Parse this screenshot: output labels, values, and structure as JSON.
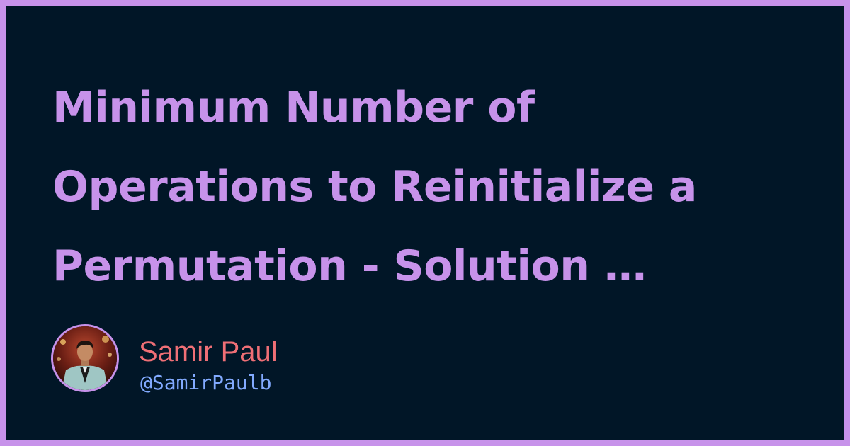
{
  "title_lines": [
    "Minimum Number of",
    "Operations to Reinitialize a",
    "Permutation - Solution …"
  ],
  "author": {
    "name": "Samir Paul",
    "handle": "@SamirPaulb"
  },
  "colors": {
    "border": "#c792ea",
    "background": "#011627",
    "title": "#c792ea",
    "name": "#ef6f76",
    "handle": "#82aaff"
  }
}
